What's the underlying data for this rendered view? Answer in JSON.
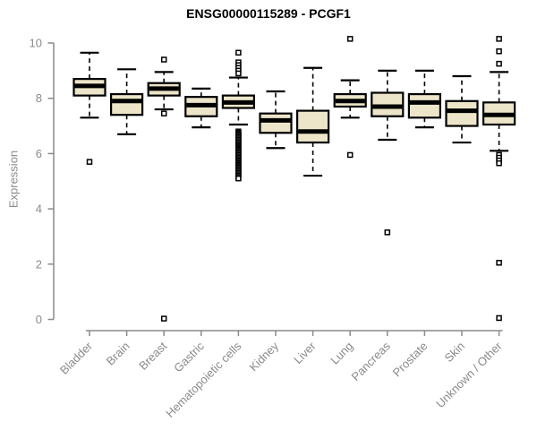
{
  "chart_data": {
    "type": "boxplot",
    "title": "ENSG00000115289 - PCGF1",
    "ylabel": "Expression",
    "xlabel": "",
    "ylim": [
      0,
      10.3
    ],
    "yticks": [
      0,
      2,
      4,
      6,
      8,
      10
    ],
    "grid": false,
    "legend": "none",
    "categories": [
      "Bladder",
      "Brain",
      "Breast",
      "Gastric",
      "Hematopoietic cells",
      "Kidney",
      "Liver",
      "Lung",
      "Pancreas",
      "Prostate",
      "Skin",
      "Unknown / Other"
    ],
    "series": [
      {
        "category": "Bladder",
        "whisker_low": 7.3,
        "q1": 8.1,
        "median": 8.45,
        "q3": 8.7,
        "whisker_high": 9.65,
        "outliers": [
          5.7
        ]
      },
      {
        "category": "Brain",
        "whisker_low": 6.7,
        "q1": 7.4,
        "median": 7.9,
        "q3": 8.15,
        "whisker_high": 9.05,
        "outliers": []
      },
      {
        "category": "Breast",
        "whisker_low": 7.6,
        "q1": 8.1,
        "median": 8.35,
        "q3": 8.55,
        "whisker_high": 8.95,
        "outliers": [
          9.4,
          7.45,
          0.03
        ]
      },
      {
        "category": "Gastric",
        "whisker_low": 6.95,
        "q1": 7.35,
        "median": 7.75,
        "q3": 8.05,
        "whisker_high": 8.35,
        "outliers": []
      },
      {
        "category": "Hematopoietic cells",
        "whisker_low": 7.05,
        "q1": 7.65,
        "median": 7.85,
        "q3": 8.1,
        "whisker_high": 8.75,
        "outliers": [
          9.65,
          9.3,
          9.2,
          9.1,
          9.0,
          8.9,
          6.8,
          6.75,
          6.7,
          6.65,
          6.6,
          6.55,
          6.5,
          6.45,
          6.4,
          6.35,
          6.3,
          6.25,
          6.2,
          6.15,
          6.1,
          6.05,
          6.0,
          5.95,
          5.9,
          5.85,
          5.8,
          5.75,
          5.7,
          5.65,
          5.6,
          5.55,
          5.5,
          5.45,
          5.4,
          5.35,
          5.3,
          5.25,
          5.2,
          5.15,
          5.1
        ]
      },
      {
        "category": "Kidney",
        "whisker_low": 6.2,
        "q1": 6.75,
        "median": 7.2,
        "q3": 7.45,
        "whisker_high": 8.25,
        "outliers": []
      },
      {
        "category": "Liver",
        "whisker_low": 5.2,
        "q1": 6.4,
        "median": 6.8,
        "q3": 7.55,
        "whisker_high": 9.1,
        "outliers": []
      },
      {
        "category": "Lung",
        "whisker_low": 7.3,
        "q1": 7.7,
        "median": 7.9,
        "q3": 8.15,
        "whisker_high": 8.65,
        "outliers": [
          10.15,
          5.95
        ]
      },
      {
        "category": "Pancreas",
        "whisker_low": 6.5,
        "q1": 7.35,
        "median": 7.7,
        "q3": 8.2,
        "whisker_high": 9.0,
        "outliers": [
          3.15
        ]
      },
      {
        "category": "Prostate",
        "whisker_low": 6.95,
        "q1": 7.3,
        "median": 7.85,
        "q3": 8.15,
        "whisker_high": 9.0,
        "outliers": []
      },
      {
        "category": "Skin",
        "whisker_low": 6.4,
        "q1": 7.0,
        "median": 7.55,
        "q3": 7.9,
        "whisker_high": 8.8,
        "outliers": []
      },
      {
        "category": "Unknown / Other",
        "whisker_low": 6.1,
        "q1": 7.05,
        "median": 7.4,
        "q3": 7.85,
        "whisker_high": 8.95,
        "outliers": [
          10.15,
          9.7,
          9.25,
          5.95,
          5.85,
          5.75,
          5.65,
          2.05,
          0.05
        ]
      }
    ],
    "style": {
      "box_fill": "#ece5c9",
      "box_stroke": "#000000",
      "median_color": "#000000",
      "whisker_line_style": "dashed",
      "outlier_marker": "open-square",
      "axis_color": "#8a8a8a",
      "title_color": "#000000",
      "background": "#ffffff"
    }
  }
}
